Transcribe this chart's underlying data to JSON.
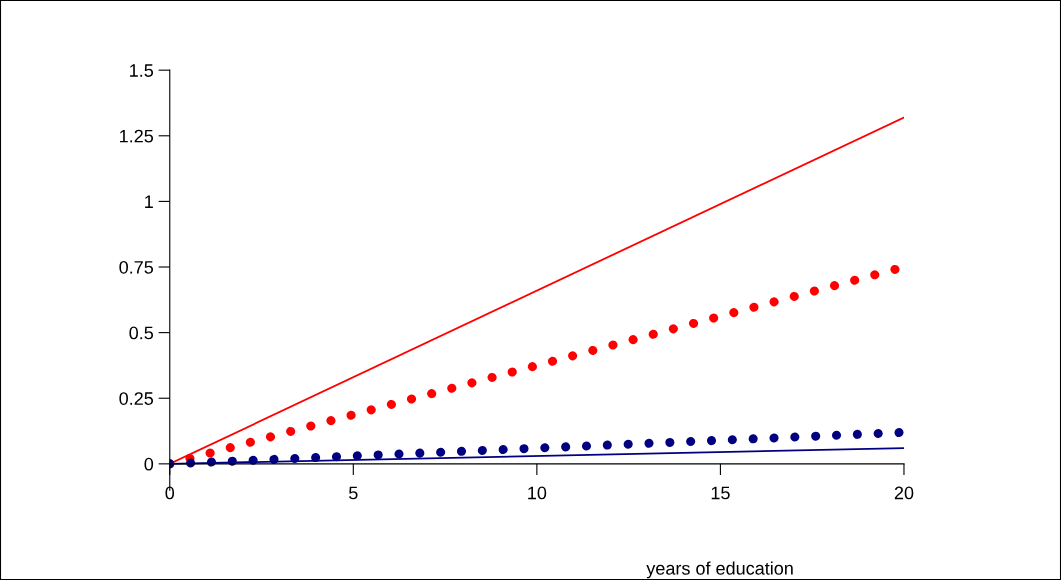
{
  "chart_data": {
    "type": "line",
    "xlabel": "years of education",
    "x": [
      0,
      20
    ],
    "xlim": [
      0,
      20
    ],
    "xticks": [
      0,
      5,
      10,
      15,
      20
    ],
    "ylim": [
      -0.1,
      1.5
    ],
    "yticks": [
      0,
      0.25,
      0.5,
      0.75,
      1,
      1.25,
      1.5
    ],
    "grid": false,
    "legend": false,
    "series": [
      {
        "color": "#ff0000",
        "values": [
          0,
          1.32
        ],
        "line_style": "solid"
      },
      {
        "color": "#ff0000",
        "values": [
          0,
          0.75
        ],
        "line_style": "dotted"
      },
      {
        "color": "#000080",
        "values": [
          0,
          0.12
        ],
        "line_style": "dotted"
      },
      {
        "color": "#000080",
        "values": [
          0,
          0.06
        ],
        "line_style": "solid"
      }
    ]
  }
}
